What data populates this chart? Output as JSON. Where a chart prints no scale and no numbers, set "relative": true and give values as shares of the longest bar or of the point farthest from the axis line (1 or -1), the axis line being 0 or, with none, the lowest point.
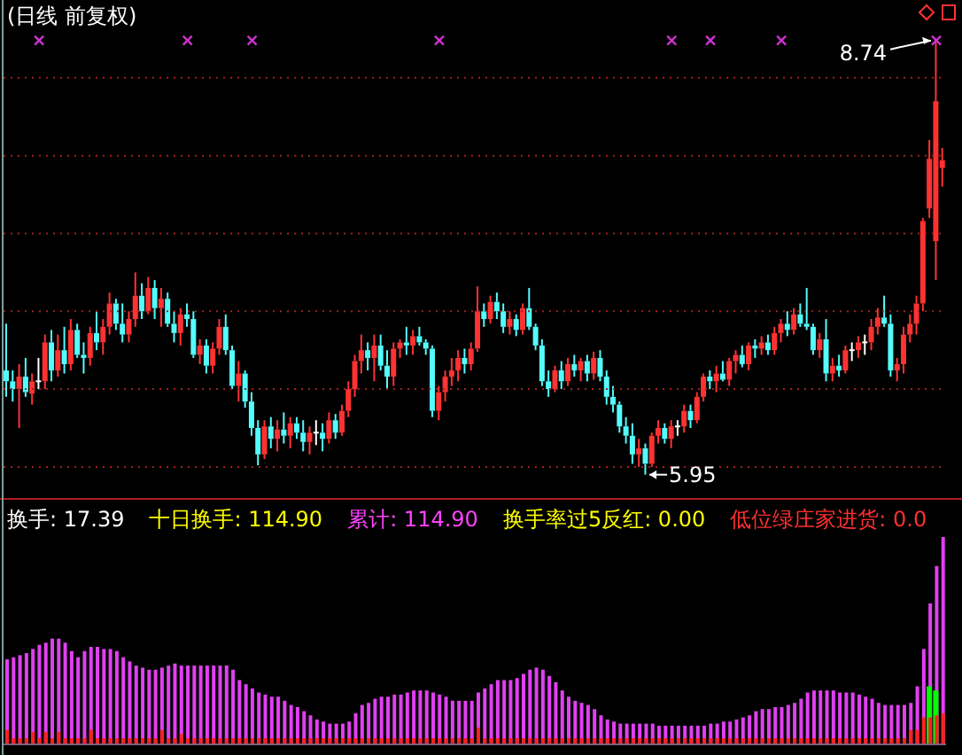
{
  "chart_data": [
    {
      "type": "candlestick",
      "title": "(日线 前复权)",
      "categories": [
        null,
        null,
        null,
        null,
        null,
        null,
        null,
        null,
        null,
        null,
        null,
        null,
        null,
        null,
        null,
        null,
        null,
        null,
        null,
        null,
        null,
        null,
        null,
        null,
        null,
        null,
        null,
        null,
        null,
        null,
        null,
        null,
        null,
        null,
        null,
        null,
        null,
        null,
        null,
        null,
        null,
        null,
        null,
        null,
        null,
        null,
        null,
        null,
        null,
        null,
        null,
        null,
        null,
        null,
        null,
        null,
        null,
        null,
        null,
        null,
        null,
        null,
        null,
        null,
        null,
        null,
        null,
        null,
        null,
        null,
        null,
        null,
        null,
        null,
        null,
        null,
        null,
        null,
        null,
        null,
        null,
        null,
        null,
        null,
        null,
        null,
        null,
        null,
        null,
        null,
        null,
        null,
        null,
        null,
        null,
        null,
        null,
        null,
        null,
        null,
        null,
        null,
        null,
        null,
        null,
        null,
        null,
        null,
        null,
        null,
        null,
        null,
        null,
        null,
        null,
        null,
        null,
        null,
        null,
        null,
        null,
        null,
        null,
        null,
        null,
        null,
        null,
        null,
        null,
        null,
        null,
        null,
        null,
        null,
        null,
        null,
        null,
        null,
        null,
        null,
        null,
        null,
        null,
        null,
        null,
        null
      ],
      "ohlc": [
        [
          6.62,
          6.92,
          6.45,
          6.55
        ],
        [
          6.55,
          6.62,
          6.42,
          6.5
        ],
        [
          6.5,
          6.66,
          6.25,
          6.58
        ],
        [
          6.58,
          6.7,
          6.45,
          6.48
        ],
        [
          6.47,
          6.6,
          6.4,
          6.55
        ],
        [
          6.55,
          6.7,
          6.5,
          6.55
        ],
        [
          6.55,
          6.85,
          6.5,
          6.8
        ],
        [
          6.8,
          6.88,
          6.55,
          6.62
        ],
        [
          6.62,
          6.85,
          6.58,
          6.75
        ],
        [
          6.75,
          6.9,
          6.6,
          6.66
        ],
        [
          6.66,
          6.95,
          6.62,
          6.88
        ],
        [
          6.88,
          6.92,
          6.7,
          6.72
        ],
        [
          6.72,
          6.8,
          6.6,
          6.7
        ],
        [
          6.7,
          6.9,
          6.65,
          6.86
        ],
        [
          6.86,
          7.0,
          6.75,
          6.8
        ],
        [
          6.8,
          6.95,
          6.72,
          6.9
        ],
        [
          6.9,
          7.12,
          6.85,
          7.05
        ],
        [
          7.05,
          7.08,
          6.88,
          6.92
        ],
        [
          6.92,
          7.05,
          6.8,
          6.85
        ],
        [
          6.85,
          7.0,
          6.8,
          6.95
        ],
        [
          6.95,
          7.25,
          6.9,
          7.1
        ],
        [
          7.1,
          7.18,
          6.95,
          7.0
        ],
        [
          7.0,
          7.22,
          6.98,
          7.15
        ],
        [
          7.15,
          7.2,
          6.95,
          7.02
        ],
        [
          7.02,
          7.15,
          6.9,
          7.08
        ],
        [
          7.08,
          7.12,
          6.9,
          6.92
        ],
        [
          6.92,
          7.0,
          6.8,
          6.86
        ],
        [
          6.86,
          7.02,
          6.78,
          6.98
        ],
        [
          6.98,
          7.05,
          6.9,
          6.95
        ],
        [
          6.95,
          7.0,
          6.7,
          6.72
        ],
        [
          6.72,
          6.82,
          6.66,
          6.78
        ],
        [
          6.78,
          6.82,
          6.6,
          6.65
        ],
        [
          6.65,
          6.8,
          6.6,
          6.76
        ],
        [
          6.76,
          6.95,
          6.72,
          6.9
        ],
        [
          6.9,
          6.98,
          6.72,
          6.75
        ],
        [
          6.75,
          6.78,
          6.5,
          6.52
        ],
        [
          6.52,
          6.68,
          6.42,
          6.6
        ],
        [
          6.6,
          6.62,
          6.38,
          6.42
        ],
        [
          6.42,
          6.48,
          6.2,
          6.25
        ],
        [
          6.25,
          6.3,
          6.01,
          6.08
        ],
        [
          6.08,
          6.3,
          6.05,
          6.26
        ],
        [
          6.26,
          6.32,
          6.12,
          6.18
        ],
        [
          6.18,
          6.3,
          6.1,
          6.24
        ],
        [
          6.24,
          6.35,
          6.15,
          6.2
        ],
        [
          6.2,
          6.32,
          6.12,
          6.28
        ],
        [
          6.28,
          6.32,
          6.18,
          6.22
        ],
        [
          6.22,
          6.3,
          6.1,
          6.16
        ],
        [
          6.16,
          6.26,
          6.08,
          6.22
        ],
        [
          6.22,
          6.3,
          6.14,
          6.22
        ],
        [
          6.22,
          6.28,
          6.1,
          6.18
        ],
        [
          6.18,
          6.35,
          6.15,
          6.3
        ],
        [
          6.3,
          6.34,
          6.18,
          6.22
        ],
        [
          6.22,
          6.4,
          6.2,
          6.36
        ],
        [
          6.36,
          6.55,
          6.32,
          6.5
        ],
        [
          6.5,
          6.72,
          6.45,
          6.68
        ],
        [
          6.68,
          6.85,
          6.6,
          6.75
        ],
        [
          6.75,
          6.8,
          6.62,
          6.7
        ],
        [
          6.7,
          6.85,
          6.55,
          6.78
        ],
        [
          6.78,
          6.85,
          6.62,
          6.65
        ],
        [
          6.65,
          6.75,
          6.5,
          6.58
        ],
        [
          6.58,
          6.8,
          6.52,
          6.76
        ],
        [
          6.76,
          6.82,
          6.7,
          6.8
        ],
        [
          6.8,
          6.9,
          6.72,
          6.78
        ],
        [
          6.78,
          6.88,
          6.72,
          6.84
        ],
        [
          6.84,
          6.9,
          6.78,
          6.8
        ],
        [
          6.8,
          6.82,
          6.72,
          6.76
        ],
        [
          6.76,
          6.78,
          6.32,
          6.36
        ],
        [
          6.36,
          6.52,
          6.3,
          6.48
        ],
        [
          6.48,
          6.62,
          6.42,
          6.58
        ],
        [
          6.58,
          6.7,
          6.52,
          6.62
        ],
        [
          6.62,
          6.75,
          6.55,
          6.7
        ],
        [
          6.7,
          6.76,
          6.6,
          6.66
        ],
        [
          6.66,
          6.8,
          6.62,
          6.76
        ],
        [
          6.76,
          7.16,
          6.74,
          7.0
        ],
        [
          7.0,
          7.05,
          6.9,
          6.95
        ],
        [
          6.95,
          7.1,
          6.92,
          7.06
        ],
        [
          7.06,
          7.12,
          6.95,
          7.0
        ],
        [
          7.0,
          7.05,
          6.86,
          6.9
        ],
        [
          6.9,
          7.0,
          6.85,
          6.95
        ],
        [
          6.95,
          6.98,
          6.84,
          6.88
        ],
        [
          6.88,
          7.05,
          6.85,
          7.02
        ],
        [
          7.02,
          7.15,
          6.88,
          6.9
        ],
        [
          6.9,
          6.92,
          6.75,
          6.78
        ],
        [
          6.78,
          6.82,
          6.52,
          6.55
        ],
        [
          6.55,
          6.62,
          6.45,
          6.5
        ],
        [
          6.5,
          6.65,
          6.48,
          6.62
        ],
        [
          6.62,
          6.68,
          6.5,
          6.55
        ],
        [
          6.55,
          6.7,
          6.52,
          6.66
        ],
        [
          6.66,
          6.72,
          6.58,
          6.62
        ],
        [
          6.62,
          6.7,
          6.55,
          6.68
        ],
        [
          6.68,
          6.72,
          6.55,
          6.6
        ],
        [
          6.6,
          6.74,
          6.56,
          6.7
        ],
        [
          6.7,
          6.75,
          6.55,
          6.58
        ],
        [
          6.58,
          6.62,
          6.4,
          6.45
        ],
        [
          6.45,
          6.52,
          6.35,
          6.4
        ],
        [
          6.4,
          6.42,
          6.22,
          6.26
        ],
        [
          6.26,
          6.32,
          6.15,
          6.2
        ],
        [
          6.2,
          6.28,
          6.02,
          6.08
        ],
        [
          6.08,
          6.18,
          6.0,
          6.12
        ],
        [
          6.12,
          6.15,
          5.95,
          6.02
        ],
        [
          6.02,
          6.22,
          6.0,
          6.2
        ],
        [
          6.2,
          6.3,
          6.15,
          6.25
        ],
        [
          6.25,
          6.28,
          6.15,
          6.18
        ],
        [
          6.18,
          6.3,
          6.12,
          6.26
        ],
        [
          6.26,
          6.3,
          6.2,
          6.26
        ],
        [
          6.26,
          6.4,
          6.22,
          6.36
        ],
        [
          6.36,
          6.4,
          6.25,
          6.3
        ],
        [
          6.3,
          6.48,
          6.28,
          6.45
        ],
        [
          6.45,
          6.6,
          6.42,
          6.58
        ],
        [
          6.58,
          6.62,
          6.5,
          6.55
        ],
        [
          6.55,
          6.65,
          6.48,
          6.6
        ],
        [
          6.6,
          6.68,
          6.55,
          6.56
        ],
        [
          6.56,
          6.7,
          6.52,
          6.68
        ],
        [
          6.68,
          6.75,
          6.6,
          6.72
        ],
        [
          6.72,
          6.78,
          6.64,
          6.66
        ],
        [
          6.66,
          6.8,
          6.62,
          6.78
        ],
        [
          6.78,
          6.82,
          6.7,
          6.76
        ],
        [
          6.76,
          6.84,
          6.72,
          6.8
        ],
        [
          6.8,
          6.85,
          6.72,
          6.75
        ],
        [
          6.75,
          6.9,
          6.72,
          6.86
        ],
        [
          6.86,
          6.95,
          6.8,
          6.92
        ],
        [
          6.92,
          7.0,
          6.84,
          6.88
        ],
        [
          6.88,
          7.02,
          6.85,
          6.98
        ],
        [
          6.98,
          7.05,
          6.9,
          6.92
        ],
        [
          6.92,
          7.15,
          6.88,
          6.9
        ],
        [
          6.9,
          6.92,
          6.72,
          6.75
        ],
        [
          6.75,
          6.86,
          6.7,
          6.82
        ],
        [
          6.82,
          6.95,
          6.55,
          6.6
        ],
        [
          6.6,
          6.7,
          6.55,
          6.65
        ],
        [
          6.65,
          6.72,
          6.58,
          6.62
        ],
        [
          6.62,
          6.78,
          6.6,
          6.75
        ],
        [
          6.75,
          6.8,
          6.68,
          6.75
        ],
        [
          6.75,
          6.84,
          6.7,
          6.8
        ],
        [
          6.8,
          6.85,
          6.72,
          6.8
        ],
        [
          6.8,
          6.95,
          6.75,
          6.9
        ],
        [
          6.9,
          7.02,
          6.85,
          6.96
        ],
        [
          6.96,
          7.1,
          6.9,
          6.92
        ],
        [
          6.92,
          6.98,
          6.58,
          6.62
        ],
        [
          6.62,
          6.7,
          6.55,
          6.66
        ],
        [
          6.66,
          6.9,
          6.6,
          6.85
        ],
        [
          6.85,
          6.98,
          6.8,
          6.92
        ],
        [
          6.92,
          7.1,
          6.85,
          7.05
        ],
        [
          7.05,
          7.6,
          7.0,
          7.58
        ],
        [
          7.66,
          8.1,
          7.6,
          7.98
        ],
        [
          7.45,
          8.74,
          7.2,
          8.35
        ],
        [
          7.92,
          8.05,
          7.8,
          7.97
        ]
      ],
      "colors": [
        "#54fcfc",
        "#54fcfc",
        "#ff3232",
        "#54fcfc",
        "#ff3232",
        "#ffffff",
        "#ff3232",
        "#54fcfc",
        "#ff3232",
        "#54fcfc",
        "#ff3232",
        "#54fcfc",
        "#54fcfc",
        "#ff3232",
        "#54fcfc",
        "#ff3232",
        "#ff3232",
        "#54fcfc",
        "#54fcfc",
        "#ff3232",
        "#ff3232",
        "#54fcfc",
        "#ff3232",
        "#54fcfc",
        "#ff3232",
        "#54fcfc",
        "#54fcfc",
        "#ff3232",
        "#54fcfc",
        "#54fcfc",
        "#ff3232",
        "#54fcfc",
        "#ff3232",
        "#ff3232",
        "#54fcfc",
        "#54fcfc",
        "#ff3232",
        "#54fcfc",
        "#54fcfc",
        "#54fcfc",
        "#ff3232",
        "#54fcfc",
        "#ff3232",
        "#54fcfc",
        "#ff3232",
        "#54fcfc",
        "#54fcfc",
        "#ff3232",
        "#ffffff",
        "#54fcfc",
        "#ff3232",
        "#54fcfc",
        "#ff3232",
        "#ff3232",
        "#ff3232",
        "#ff3232",
        "#54fcfc",
        "#ff3232",
        "#54fcfc",
        "#54fcfc",
        "#ff3232",
        "#ff3232",
        "#54fcfc",
        "#ff3232",
        "#54fcfc",
        "#54fcfc",
        "#54fcfc",
        "#ff3232",
        "#ff3232",
        "#ff3232",
        "#ff3232",
        "#54fcfc",
        "#ff3232",
        "#ff3232",
        "#54fcfc",
        "#ff3232",
        "#54fcfc",
        "#54fcfc",
        "#ff3232",
        "#54fcfc",
        "#ff3232",
        "#54fcfc",
        "#54fcfc",
        "#54fcfc",
        "#54fcfc",
        "#ff3232",
        "#54fcfc",
        "#ff3232",
        "#54fcfc",
        "#ff3232",
        "#54fcfc",
        "#ff3232",
        "#54fcfc",
        "#54fcfc",
        "#54fcfc",
        "#54fcfc",
        "#54fcfc",
        "#54fcfc",
        "#ff3232",
        "#54fcfc",
        "#ff3232",
        "#ff3232",
        "#54fcfc",
        "#ff3232",
        "#ffffff",
        "#ff3232",
        "#54fcfc",
        "#ff3232",
        "#ff3232",
        "#54fcfc",
        "#ff3232",
        "#54fcfc",
        "#ff3232",
        "#ff3232",
        "#54fcfc",
        "#ff3232",
        "#54fcfc",
        "#ff3232",
        "#54fcfc",
        "#ff3232",
        "#ff3232",
        "#54fcfc",
        "#ff3232",
        "#54fcfc",
        "#54fcfc",
        "#54fcfc",
        "#ff3232",
        "#54fcfc",
        "#ff3232",
        "#54fcfc",
        "#ff3232",
        "#ffffff",
        "#ff3232",
        "#ffffff",
        "#ff3232",
        "#ff3232",
        "#54fcfc",
        "#54fcfc",
        "#ff3232",
        "#ff3232",
        "#ff3232",
        "#ff3232",
        "#ff3232",
        "#ff3232",
        "#ff3232",
        "#ff3232"
      ],
      "ylim": [
        5.8,
        9.0
      ],
      "yticks": [
        {
          "value": 6,
          "label": null
        },
        {
          "value": 6.5,
          "label": null
        },
        {
          "value": 7,
          "label": null
        },
        {
          "value": 7.5,
          "label": null
        },
        {
          "value": 8,
          "label": null
        },
        {
          "value": 8.5,
          "label": null
        }
      ],
      "tick_labels": false,
      "grid": "y",
      "marker": "cross",
      "annotations": [
        "8.74",
        "5.95"
      ],
      "series": [
        {
          "type": "scatter",
          "color": "#cc33cc",
          "values": [
            null,
            null,
            null,
            null,
            null,
            8.74,
            null,
            null,
            null,
            null,
            null,
            null,
            null,
            null,
            null,
            null,
            null,
            null,
            null,
            null,
            null,
            null,
            null,
            null,
            null,
            null,
            null,
            null,
            8.74,
            null,
            null,
            null,
            null,
            null,
            null,
            null,
            null,
            null,
            8.74,
            null,
            null,
            null,
            null,
            null,
            null,
            null,
            null,
            null,
            null,
            null,
            null,
            null,
            null,
            null,
            null,
            null,
            null,
            null,
            null,
            null,
            null,
            null,
            null,
            null,
            null,
            null,
            null,
            8.74,
            null,
            null,
            null,
            null,
            null,
            null,
            null,
            null,
            null,
            null,
            null,
            null,
            null,
            null,
            null,
            null,
            null,
            null,
            null,
            null,
            null,
            null,
            null,
            null,
            null,
            null,
            null,
            null,
            null,
            null,
            null,
            null,
            null,
            null,
            null,
            8.74,
            null,
            null,
            null,
            null,
            null,
            8.74,
            null,
            null,
            null,
            null,
            null,
            null,
            null,
            null,
            null,
            null,
            8.74,
            null,
            null,
            null,
            null,
            null,
            null,
            null,
            null,
            null,
            null,
            null,
            null,
            null,
            null,
            null,
            null,
            null,
            null,
            null,
            null,
            null,
            null,
            null,
            8.74,
            null
          ]
        }
      ]
    },
    {
      "type": "bar",
      "relative": true,
      "categories": [
        null,
        null,
        null,
        null,
        null,
        null,
        null,
        null,
        null,
        null,
        null,
        null,
        null,
        null,
        null,
        null,
        null,
        null,
        null,
        null,
        null,
        null,
        null,
        null,
        null,
        null,
        null,
        null,
        null,
        null,
        null,
        null,
        null,
        null,
        null,
        null,
        null,
        null,
        null,
        null,
        null,
        null,
        null,
        null,
        null,
        null,
        null,
        null,
        null,
        null,
        null,
        null,
        null,
        null,
        null,
        null,
        null,
        null,
        null,
        null,
        null,
        null,
        null,
        null,
        null,
        null,
        null,
        null,
        null,
        null,
        null,
        null,
        null,
        null,
        null,
        null,
        null,
        null,
        null,
        null,
        null,
        null,
        null,
        null,
        null,
        null,
        null,
        null,
        null,
        null,
        null,
        null,
        null,
        null,
        null,
        null,
        null,
        null,
        null,
        null,
        null,
        null,
        null,
        null,
        null,
        null,
        null,
        null,
        null,
        null,
        null,
        null,
        null,
        null,
        null,
        null,
        null,
        null,
        null,
        null,
        null,
        null,
        null,
        null,
        null,
        null,
        null,
        null,
        null,
        null,
        null,
        null,
        null,
        null,
        null,
        null,
        null,
        null,
        null,
        null,
        null,
        null,
        null,
        null,
        null,
        null
      ],
      "annotations": [
        "换手: 17.39",
        "十日换手: 114.90",
        "累计: 114.90",
        "换手率过5反红: 0.00",
        "低位绿庄家进货: 0.0"
      ],
      "series": [
        {
          "color": "#e040f0",
          "values": [
            0.41,
            0.42,
            0.43,
            0.44,
            0.46,
            0.48,
            0.49,
            0.51,
            0.51,
            0.49,
            0.45,
            0.42,
            0.45,
            0.47,
            0.47,
            0.46,
            0.46,
            0.45,
            0.42,
            0.4,
            0.38,
            0.37,
            0.36,
            0.36,
            0.37,
            0.38,
            0.39,
            0.38,
            0.38,
            0.38,
            0.38,
            0.38,
            0.38,
            0.38,
            0.38,
            0.36,
            0.31,
            0.29,
            0.27,
            0.25,
            0.24,
            0.23,
            0.23,
            0.21,
            0.19,
            0.18,
            0.16,
            0.14,
            0.12,
            0.11,
            0.1,
            0.1,
            0.1,
            0.11,
            0.15,
            0.19,
            0.2,
            0.22,
            0.23,
            0.23,
            0.24,
            0.24,
            0.25,
            0.26,
            0.26,
            0.26,
            0.25,
            0.24,
            0.23,
            0.21,
            0.21,
            0.21,
            0.21,
            0.25,
            0.27,
            0.29,
            0.31,
            0.31,
            0.31,
            0.32,
            0.34,
            0.36,
            0.37,
            0.36,
            0.33,
            0.3,
            0.26,
            0.23,
            0.21,
            0.2,
            0.19,
            0.17,
            0.14,
            0.12,
            0.11,
            0.1,
            0.1,
            0.1,
            0.1,
            0.1,
            0.1,
            0.09,
            0.09,
            0.09,
            0.09,
            0.09,
            0.09,
            0.09,
            0.09,
            0.1,
            0.1,
            0.11,
            0.11,
            0.12,
            0.13,
            0.14,
            0.16,
            0.17,
            0.17,
            0.18,
            0.18,
            0.19,
            0.2,
            0.22,
            0.25,
            0.26,
            0.26,
            0.26,
            0.26,
            0.25,
            0.25,
            0.25,
            0.24,
            0.23,
            0.22,
            0.2,
            0.19,
            0.19,
            0.19,
            0.19,
            0.2,
            0.28,
            0.46,
            0.68,
            0.86,
            1
          ]
        },
        {
          "color": "#00ff00",
          "values": [
            null,
            null,
            null,
            null,
            null,
            null,
            null,
            null,
            null,
            null,
            null,
            null,
            null,
            null,
            null,
            null,
            null,
            null,
            null,
            null,
            null,
            null,
            null,
            null,
            null,
            null,
            null,
            null,
            null,
            null,
            null,
            null,
            null,
            null,
            null,
            null,
            null,
            null,
            null,
            null,
            null,
            null,
            null,
            null,
            null,
            null,
            null,
            null,
            null,
            null,
            null,
            null,
            null,
            null,
            null,
            null,
            null,
            null,
            null,
            null,
            null,
            null,
            null,
            null,
            null,
            null,
            null,
            null,
            null,
            null,
            null,
            null,
            null,
            null,
            null,
            null,
            null,
            null,
            null,
            null,
            null,
            null,
            null,
            null,
            null,
            null,
            null,
            null,
            null,
            null,
            null,
            null,
            null,
            null,
            null,
            null,
            null,
            null,
            null,
            null,
            null,
            null,
            null,
            null,
            null,
            null,
            null,
            null,
            null,
            null,
            null,
            null,
            null,
            null,
            null,
            null,
            null,
            null,
            null,
            null,
            null,
            null,
            null,
            null,
            null,
            null,
            null,
            null,
            null,
            null,
            null,
            null,
            null,
            null,
            null,
            null,
            null,
            null,
            null,
            null,
            null,
            null,
            null,
            0.28,
            0.26,
            null
          ]
        },
        {
          "color": "#ff2020",
          "values": [
            0.07,
            0.03,
            0.03,
            0.03,
            0.06,
            0.03,
            0.06,
            0.03,
            0.06,
            0.03,
            0.03,
            0.03,
            0.03,
            0.07,
            0.03,
            0.03,
            0.03,
            0.03,
            0.03,
            0.03,
            0.03,
            0.03,
            0.03,
            0.03,
            0.07,
            0.03,
            0.03,
            0.05,
            0.03,
            0.03,
            0.03,
            0.03,
            0.03,
            0.03,
            0.03,
            0.03,
            0.03,
            0.03,
            0.03,
            0.03,
            0.03,
            0.03,
            0.03,
            0.03,
            0.03,
            0.03,
            0.03,
            0.03,
            0.03,
            0.03,
            0.03,
            0.03,
            0.03,
            0.03,
            0.03,
            0.03,
            0.03,
            0.03,
            0.03,
            0.03,
            0.03,
            0.03,
            0.03,
            0.03,
            0.03,
            0.03,
            0.03,
            0.03,
            0.03,
            0.03,
            0.03,
            0.03,
            0.03,
            0.08,
            0.03,
            0.03,
            0.03,
            0.03,
            0.03,
            0.03,
            0.03,
            0.03,
            0.03,
            0.03,
            0.03,
            0.03,
            0.03,
            0.03,
            0.03,
            0.03,
            0.03,
            0.03,
            0.03,
            0.03,
            0.03,
            0.03,
            0.03,
            0.03,
            0.03,
            0.03,
            0.03,
            0.03,
            0.03,
            0.03,
            0.03,
            0.03,
            0.03,
            0.03,
            0.03,
            0.03,
            0.03,
            0.03,
            0.03,
            0.03,
            0.03,
            0.03,
            0.03,
            0.03,
            0.03,
            0.03,
            0.03,
            0.03,
            0.03,
            0.03,
            0.03,
            0.03,
            0.03,
            0.03,
            0.03,
            0.03,
            0.03,
            0.03,
            0.03,
            0.03,
            0.03,
            0.03,
            0.03,
            0.03,
            0.03,
            0.03,
            0.07,
            0.07,
            0.13,
            0.13,
            0.14,
            0.15
          ]
        }
      ]
    }
  ]
}
